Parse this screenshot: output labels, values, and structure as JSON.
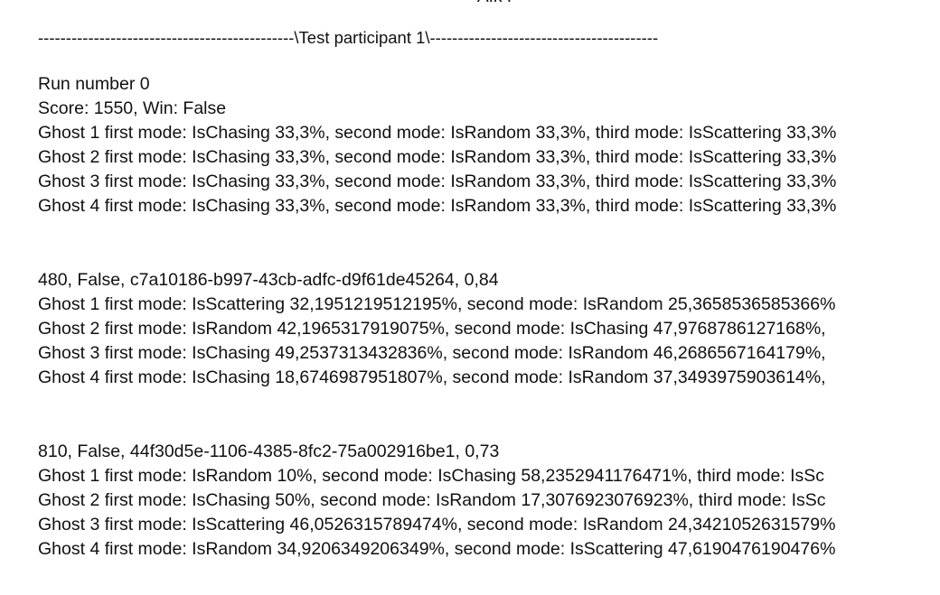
{
  "header": {
    "top_cut_text": "AIk I",
    "separator": "----------------------------------------------\\Test participant 1\\-----------------------------------------"
  },
  "run": {
    "number_line": "Run number 0",
    "score_line": "Score: 1550, Win: False",
    "ghost_lines": [
      "Ghost 1 first mode: IsChasing 33,3%, second mode: IsRandom 33,3%, third mode: IsScattering 33,3%",
      "Ghost 2 first mode: IsChasing 33,3%, second mode: IsRandom 33,3%, third mode: IsScattering 33,3%",
      "Ghost 3 first mode: IsChasing 33,3%, second mode: IsRandom 33,3%, third mode: IsScattering 33,3%",
      "Ghost 4 first mode: IsChasing 33,3%, second mode: IsRandom 33,3%, third mode: IsScattering 33,3%"
    ]
  },
  "blocks": [
    {
      "summary": "480, False, c7a10186-b997-43cb-adfc-d9f61de45264, 0,84",
      "ghost_lines": [
        "Ghost 1 first mode: IsScattering 32,1951219512195%, second mode: IsRandom 25,3658536585366%",
        "Ghost 2 first mode: IsRandom 42,1965317919075%, second mode: IsChasing 47,9768786127168%,",
        "Ghost 3 first mode: IsChasing 49,2537313432836%, second mode: IsRandom 46,2686567164179%,",
        "Ghost 4 first mode: IsChasing 18,6746987951807%, second mode: IsRandom 37,3493975903614%,"
      ]
    },
    {
      "summary": "810, False, 44f30d5e-1106-4385-8fc2-75a002916be1, 0,73",
      "ghost_lines": [
        "Ghost 1 first mode: IsRandom 10%, second mode: IsChasing 58,2352941176471%, third mode: IsSc",
        "Ghost 2 first mode: IsChasing 50%, second mode: IsRandom 17,3076923076923%, third mode: IsSc",
        "Ghost 3 first mode: IsScattering 46,0526315789474%, second mode: IsRandom 24,3421052631579%",
        "Ghost 4 first mode: IsRandom 34,9206349206349%, second mode: IsScattering 47,6190476190476%"
      ]
    }
  ]
}
